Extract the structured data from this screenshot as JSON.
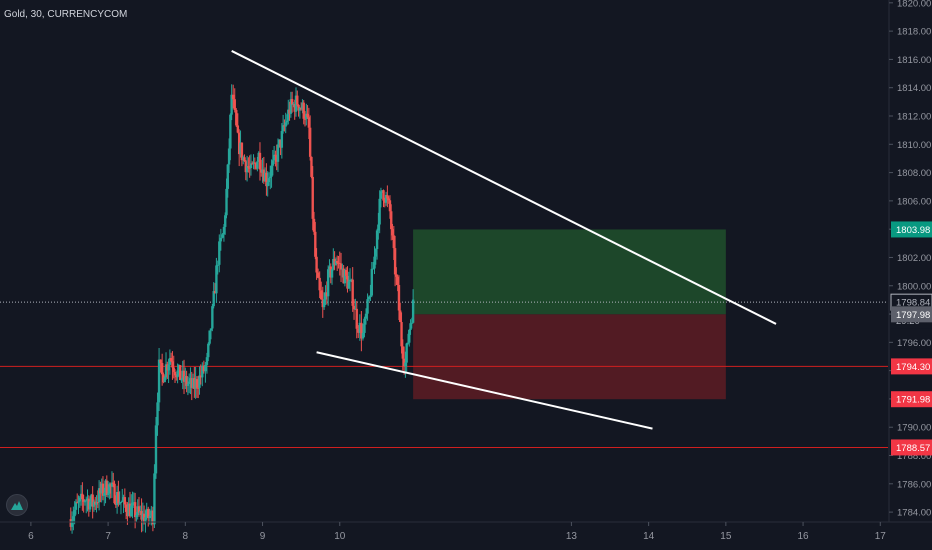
{
  "header": {
    "symbol_label": "Gold, 30, CURRENCYCOM"
  },
  "colors": {
    "background": "#131722",
    "up_candle": "#26a69a",
    "down_candle": "#ef5350",
    "trendline": "#ffffff",
    "profit_zone": "#1f4d2b",
    "loss_zone": "#5a1c24",
    "level_line": "#d01f1f",
    "axis_text": "#9598a1"
  },
  "chart_data": {
    "type": "candlestick",
    "instrument": "Gold",
    "timeframe": "30",
    "source": "CURRENCYCOM",
    "y_axis": {
      "range": [
        1783.3,
        1820.2
      ],
      "ticks": [
        "1784.00",
        "1786.00",
        "1788.00",
        "1790.00",
        "1792.00",
        "1794.00",
        "1796.00",
        "1798.00",
        "1800.00",
        "1802.00",
        "1804.00",
        "1806.00",
        "1808.00",
        "1810.00",
        "1812.00",
        "1814.00",
        "1816.00",
        "1818.00",
        "1820.00"
      ]
    },
    "x_axis": {
      "range": [
        5.6,
        17.1
      ],
      "ticks": [
        6,
        7,
        8,
        9,
        10,
        13,
        14,
        15,
        16,
        17
      ],
      "tick_labels": [
        "6",
        "7",
        "8",
        "9",
        "10",
        "13",
        "14",
        "15",
        "16",
        "17"
      ]
    },
    "price_path": [
      [
        6.5,
        1783.5
      ],
      [
        6.6,
        1784.4
      ],
      [
        6.7,
        1785.0
      ],
      [
        6.8,
        1784.6
      ],
      [
        6.9,
        1785.3
      ],
      [
        7.0,
        1785.9
      ],
      [
        7.1,
        1785.2
      ],
      [
        7.2,
        1784.5
      ],
      [
        7.3,
        1784.2
      ],
      [
        7.4,
        1783.8
      ],
      [
        7.5,
        1783.6
      ],
      [
        7.58,
        1783.8
      ],
      [
        7.62,
        1790.5
      ],
      [
        7.66,
        1794.2
      ],
      [
        7.7,
        1793.6
      ],
      [
        7.8,
        1795.0
      ],
      [
        7.9,
        1793.8
      ],
      [
        8.0,
        1793.2
      ],
      [
        8.1,
        1792.8
      ],
      [
        8.2,
        1793.6
      ],
      [
        8.28,
        1794.5
      ],
      [
        8.35,
        1798.0
      ],
      [
        8.42,
        1802.0
      ],
      [
        8.5,
        1804.0
      ],
      [
        8.55,
        1808.0
      ],
      [
        8.6,
        1813.5
      ],
      [
        8.68,
        1810.2
      ],
      [
        8.75,
        1809.0
      ],
      [
        8.85,
        1808.0
      ],
      [
        8.95,
        1809.2
      ],
      [
        9.05,
        1807.5
      ],
      [
        9.15,
        1808.6
      ],
      [
        9.25,
        1810.5
      ],
      [
        9.35,
        1812.5
      ],
      [
        9.45,
        1813.0
      ],
      [
        9.55,
        1812.2
      ],
      [
        9.6,
        1811.0
      ],
      [
        9.65,
        1805.0
      ],
      [
        9.7,
        1800.5
      ],
      [
        9.78,
        1798.2
      ],
      [
        9.85,
        1800.5
      ],
      [
        9.95,
        1802.0
      ],
      [
        10.05,
        1800.8
      ],
      [
        10.15,
        1799.8
      ],
      [
        10.22,
        1797.5
      ],
      [
        10.3,
        1796.5
      ],
      [
        10.38,
        1799.0
      ],
      [
        10.45,
        1802.0
      ],
      [
        10.5,
        1805.0
      ],
      [
        10.55,
        1806.8
      ],
      [
        10.6,
        1806.2
      ],
      [
        10.65,
        1805.2
      ],
      [
        10.7,
        1802.0
      ],
      [
        10.75,
        1799.5
      ],
      [
        10.8,
        1796.0
      ],
      [
        10.85,
        1794.5
      ],
      [
        10.9,
        1797.0
      ],
      [
        10.95,
        1798.6
      ]
    ],
    "trendlines": [
      {
        "from": [
          8.6,
          1816.6
        ],
        "to": [
          15.65,
          1797.3
        ]
      },
      {
        "from": [
          9.7,
          1795.3
        ],
        "to": [
          14.05,
          1789.9
        ]
      }
    ],
    "position_tool": {
      "x_start": 10.95,
      "x_end": 15.0,
      "entry": 1797.98,
      "target": 1803.98,
      "stop": 1791.98
    },
    "horizontal_levels": [
      1794.3,
      1788.57
    ],
    "current_price": 1798.84,
    "price_labels": [
      {
        "text": "1803.98",
        "value": 1803.98,
        "bg": "#089981",
        "fg": "#ffffff"
      },
      {
        "text": "1798.84",
        "value": 1798.84,
        "bg": "#131722",
        "fg": "#b2b5be",
        "border": "#b2b5be"
      },
      {
        "text": "29:20",
        "value": 1797.55,
        "bg": "#131722",
        "fg": "#b2b5be"
      },
      {
        "text": "1797.98",
        "value": 1797.98,
        "bg": "#5d606b",
        "fg": "#ffffff"
      },
      {
        "text": "1794.30",
        "value": 1794.3,
        "bg": "#f23645",
        "fg": "#ffffff"
      },
      {
        "text": "1791.98",
        "value": 1791.98,
        "bg": "#f23645",
        "fg": "#ffffff"
      },
      {
        "text": "1788.57",
        "value": 1788.57,
        "bg": "#f23645",
        "fg": "#ffffff"
      }
    ]
  }
}
